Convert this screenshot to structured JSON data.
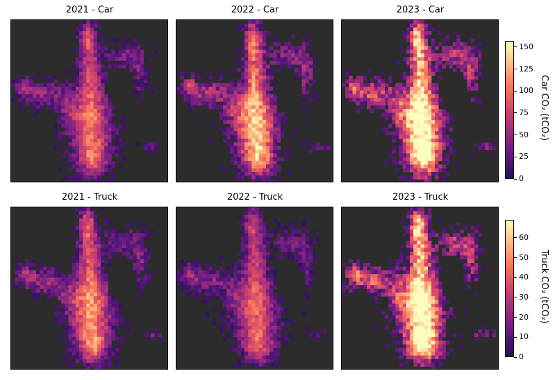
{
  "chart_data": [
    {
      "type": "heatmap",
      "title": "2021 - Car",
      "mode": "car",
      "intensity": 0.55
    },
    {
      "type": "heatmap",
      "title": "2022 - Car",
      "mode": "car",
      "intensity": 0.72
    },
    {
      "type": "heatmap",
      "title": "2023 - Car",
      "mode": "car",
      "intensity": 0.95
    },
    {
      "type": "heatmap",
      "title": "2021 - Truck",
      "mode": "truck",
      "intensity": 0.62
    },
    {
      "type": "heatmap",
      "title": "2022 - Truck",
      "mode": "truck",
      "intensity": 0.5
    },
    {
      "type": "heatmap",
      "title": "2023 - Truck",
      "mode": "truck",
      "intensity": 0.95
    }
  ],
  "colorbars": {
    "car": {
      "label": "Car CO₂ (tCO₂)",
      "range": [
        0,
        157
      ],
      "ticks": [
        0,
        25,
        50,
        75,
        100,
        125,
        150
      ]
    },
    "truck": {
      "label": "Truck CO₂ (tCO₂)",
      "range": [
        0,
        69
      ],
      "ticks": [
        0,
        10,
        20,
        30,
        40,
        50,
        60
      ]
    }
  },
  "colormap": [
    "#221150",
    "#5f187f",
    "#982d80",
    "#d3436e",
    "#f8765c",
    "#febb81",
    "#fcfdbf"
  ]
}
